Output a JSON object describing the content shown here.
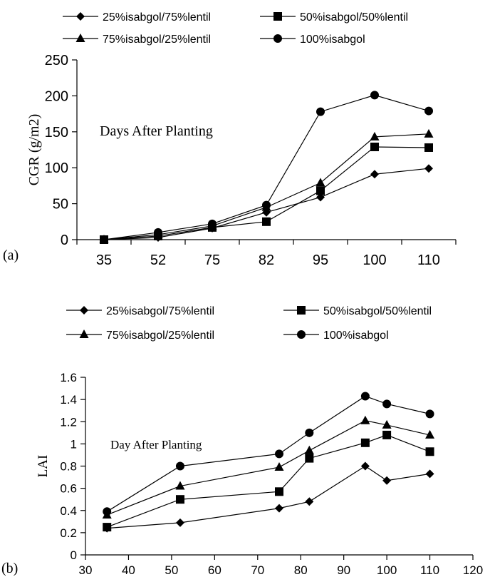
{
  "panels": {
    "a": {
      "tag": "(a)"
    },
    "b": {
      "tag": "(b)"
    }
  },
  "chart_data": [
    {
      "type": "line",
      "categories": [
        "35",
        "52",
        "75",
        "82",
        "95",
        "100",
        "110"
      ],
      "ylabel": "CGR (g/m2)",
      "annotation": "Days After Planting",
      "ylim": [
        0,
        250
      ],
      "yticks": [
        0,
        50,
        100,
        150,
        200,
        250
      ],
      "legend_placement": "top",
      "series": [
        {
          "name": "25%isabgol/75%lentil",
          "marker": "diamond",
          "values": [
            0,
            3,
            16,
            38,
            59,
            91,
            99
          ]
        },
        {
          "name": "50%isabgol/50%lentil",
          "marker": "square",
          "values": [
            0,
            5,
            17,
            25,
            68,
            129,
            128
          ]
        },
        {
          "name": "75%isabgol/25%lentil",
          "marker": "triangle",
          "values": [
            0,
            7,
            19,
            45,
            79,
            143,
            147
          ]
        },
        {
          "name": "100%isabgol",
          "marker": "circle",
          "values": [
            0,
            10,
            22,
            48,
            178,
            201,
            179
          ]
        }
      ]
    },
    {
      "type": "line",
      "x": [
        35,
        52,
        75,
        82,
        95,
        100,
        110
      ],
      "ylabel": "LAI",
      "annotation": "Day After Planting",
      "xlim": [
        30,
        120
      ],
      "xticks": [
        30,
        40,
        50,
        60,
        70,
        80,
        90,
        100,
        110,
        120
      ],
      "ylim": [
        0,
        1.6
      ],
      "yticks": [
        0,
        0.2,
        0.4,
        0.6,
        0.8,
        1,
        1.2,
        1.4,
        1.6
      ],
      "legend_placement": "top",
      "series": [
        {
          "name": "25%isabgol/75%lentil",
          "marker": "diamond",
          "values": [
            0.24,
            0.29,
            0.42,
            0.48,
            0.8,
            0.67,
            0.73
          ]
        },
        {
          "name": "50%isabgol/50%lentil",
          "marker": "square",
          "values": [
            0.25,
            0.5,
            0.57,
            0.87,
            1.01,
            1.08,
            0.93
          ]
        },
        {
          "name": "75%isabgol/25%lentil",
          "marker": "triangle",
          "values": [
            0.36,
            0.62,
            0.79,
            0.94,
            1.21,
            1.17,
            1.08
          ]
        },
        {
          "name": "100%isabgol",
          "marker": "circle",
          "values": [
            0.39,
            0.8,
            0.91,
            1.1,
            1.43,
            1.36,
            1.27
          ]
        }
      ]
    }
  ]
}
